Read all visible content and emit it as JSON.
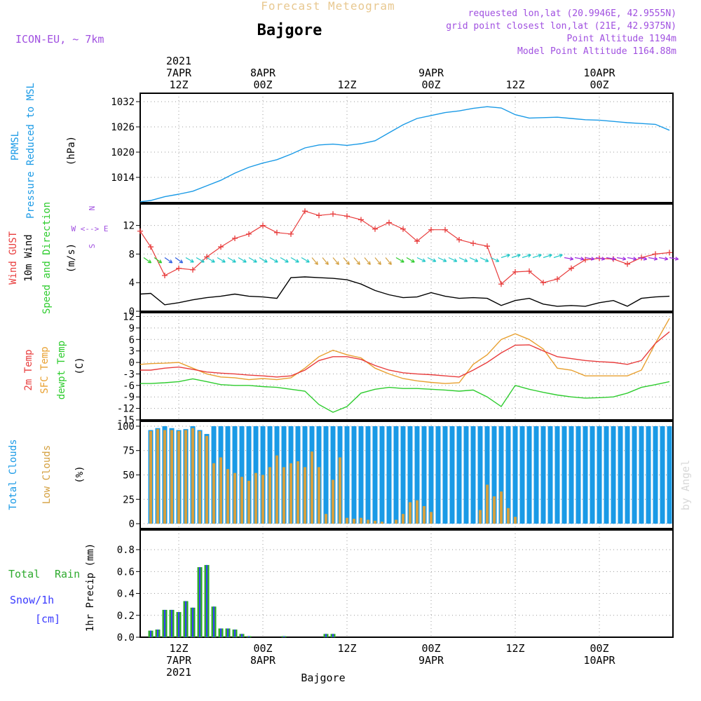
{
  "header": {
    "title": "Forecast Meteogram",
    "station": "Bajgore",
    "model": "ICON-EU, ~ 7km",
    "requested": "requested lon,lat (20.9946E, 42.9555N)",
    "gridpoint": "grid point closest lon,lat (21E, 42.9375N)",
    "point_alt": "Point Altitude 1194m",
    "model_alt": "Model Point Altitude 1164.88m",
    "footer": "Bajgore",
    "watermark": "by Angel"
  },
  "time_axis": {
    "start_label": "2021 7APR 12Z",
    "top_ticks": [
      {
        "t": 0,
        "lines": [
          "2021",
          "7APR",
          "12Z"
        ]
      },
      {
        "t": 12,
        "lines": [
          "8APR",
          "00Z"
        ]
      },
      {
        "t": 24,
        "lines": [
          "12Z"
        ]
      },
      {
        "t": 36,
        "lines": [
          "9APR",
          "00Z"
        ]
      },
      {
        "t": 48,
        "lines": [
          "12Z"
        ]
      },
      {
        "t": 60,
        "lines": [
          "10APR",
          "00Z"
        ]
      }
    ],
    "bottom_ticks": [
      {
        "t": 0,
        "lines": [
          "12Z",
          "7APR",
          "2021"
        ]
      },
      {
        "t": 12,
        "lines": [
          "00Z",
          "8APR"
        ]
      },
      {
        "t": 24,
        "lines": [
          "12Z"
        ]
      },
      {
        "t": 36,
        "lines": [
          "00Z",
          "9APR"
        ]
      },
      {
        "t": 48,
        "lines": [
          "12Z"
        ]
      },
      {
        "t": 60,
        "lines": [
          "00Z",
          "10APR"
        ]
      }
    ]
  },
  "panel_labels": {
    "pressure": [
      "PRMSL",
      "Pressure Reduced to MSL",
      "(hPa)"
    ],
    "wind": [
      "Wind GUST",
      "10m Wind",
      "Speed and Direction",
      "(m/s)"
    ],
    "compass": [
      "N",
      "W <--> E",
      "S"
    ],
    "temp": [
      "2m Temp",
      "SFC Temp",
      "dewpt Temp",
      "(C)"
    ],
    "clouds": [
      "Total Clouds",
      "Low Clouds",
      "(%)"
    ],
    "precip": [
      "Total",
      "Rain",
      "Snow/1h",
      "[cm]",
      "1hr Precip (mm)"
    ]
  },
  "colors": {
    "pressure": "#1a9ae6",
    "gust": "#e83c3c",
    "wind": "#000000",
    "temp2m": "#e83c3c",
    "sfc": "#e8a030",
    "dewpt": "#2ecc2e",
    "total_cloud": "#1a9ae6",
    "low_cloud": "#d4a040",
    "rain": "#2eaa2e",
    "snow": "#3a3aff",
    "title": "#e8c890",
    "info": "#a050e0"
  },
  "chart_data": [
    {
      "type": "line",
      "name": "pressure",
      "title": "PRMSL",
      "ylabel": "(hPa)",
      "ylim": [
        1008,
        1034
      ],
      "yticks": [
        1014,
        1020,
        1026,
        1032
      ],
      "x": [
        -5.5,
        -4,
        -2,
        0,
        2,
        4,
        6,
        8,
        10,
        12,
        14,
        16,
        18,
        20,
        22,
        24,
        26,
        28,
        30,
        32,
        34,
        36,
        38,
        40,
        42,
        44,
        46,
        48,
        50,
        52,
        54,
        56,
        58,
        60,
        62,
        64,
        66,
        68,
        70
      ],
      "values": [
        1008.2,
        1008.5,
        1009.4,
        1010.0,
        1010.7,
        1012.0,
        1013.3,
        1015.0,
        1016.4,
        1017.4,
        1018.2,
        1019.5,
        1021.0,
        1021.7,
        1021.9,
        1021.6,
        1022.0,
        1022.7,
        1024.6,
        1026.5,
        1028.0,
        1028.7,
        1029.4,
        1029.8,
        1030.4,
        1030.8,
        1030.5,
        1028.9,
        1028.1,
        1028.2,
        1028.3,
        1028.0,
        1027.7,
        1027.6,
        1027.3,
        1027.0,
        1026.8,
        1026.6,
        1025.2
      ]
    },
    {
      "type": "line",
      "name": "wind",
      "ylim": [
        0,
        15
      ],
      "yticks": [
        0,
        4,
        8,
        12
      ],
      "x": [
        -5.5,
        -4,
        -2,
        0,
        2,
        4,
        6,
        8,
        10,
        12,
        14,
        16,
        18,
        20,
        22,
        24,
        26,
        28,
        30,
        32,
        34,
        36,
        38,
        40,
        42,
        44,
        46,
        48,
        50,
        52,
        54,
        56,
        58,
        60,
        62,
        64,
        66,
        68,
        70
      ],
      "gust": [
        11.2,
        9.0,
        5.0,
        6.0,
        5.8,
        7.6,
        9.0,
        10.2,
        10.8,
        12.0,
        11.0,
        10.8,
        14.0,
        13.4,
        13.6,
        13.3,
        12.8,
        11.5,
        12.4,
        11.5,
        9.8,
        11.4,
        11.4,
        10.0,
        9.5,
        9.1,
        3.8,
        5.5,
        5.6,
        4.0,
        4.5,
        6.0,
        7.2,
        7.4,
        7.3,
        6.6,
        7.5,
        8.0,
        8.2
      ],
      "speed": [
        2.4,
        2.5,
        0.9,
        1.2,
        1.6,
        1.9,
        2.1,
        2.4,
        2.1,
        2.0,
        1.8,
        4.7,
        4.8,
        4.7,
        4.6,
        4.4,
        3.8,
        2.9,
        2.3,
        1.9,
        2.0,
        2.6,
        2.1,
        1.8,
        1.9,
        1.8,
        0.8,
        1.5,
        1.8,
        1.0,
        0.7,
        0.8,
        0.7,
        1.2,
        1.5,
        0.7,
        1.8,
        2.0,
        2.1
      ]
    },
    {
      "type": "line",
      "name": "temperature",
      "ylim": [
        -15,
        13
      ],
      "yticks": [
        -15,
        -12,
        -9,
        -6,
        -3,
        0,
        3,
        6,
        9,
        12
      ],
      "x": [
        -5.5,
        -4,
        -2,
        0,
        2,
        4,
        6,
        8,
        10,
        12,
        14,
        16,
        18,
        20,
        22,
        24,
        26,
        28,
        30,
        32,
        34,
        36,
        38,
        40,
        42,
        44,
        46,
        48,
        50,
        52,
        54,
        56,
        58,
        60,
        62,
        64,
        66,
        68,
        70
      ],
      "t2m": [
        -2.0,
        -2.0,
        -1.5,
        -1.2,
        -1.8,
        -2.5,
        -2.8,
        -3.0,
        -3.3,
        -3.5,
        -3.8,
        -3.5,
        -2.0,
        0.5,
        1.5,
        1.5,
        0.8,
        -0.8,
        -2.0,
        -2.7,
        -3.0,
        -3.2,
        -3.5,
        -3.8,
        -2.0,
        0.0,
        2.5,
        4.5,
        4.6,
        3.0,
        1.5,
        1.0,
        0.5,
        0.2,
        0.0,
        -0.5,
        0.5,
        5.0,
        8.0
      ],
      "sfc": [
        -0.5,
        -0.3,
        -0.2,
        0.0,
        -1.5,
        -3.0,
        -3.8,
        -4.0,
        -4.5,
        -4.2,
        -4.5,
        -4.0,
        -1.5,
        1.5,
        3.2,
        2.0,
        1.2,
        -1.5,
        -3.0,
        -4.2,
        -4.8,
        -5.2,
        -5.5,
        -5.3,
        -0.5,
        2.0,
        6.0,
        7.5,
        6.0,
        3.5,
        -1.5,
        -2.0,
        -3.5,
        -3.5,
        -3.5,
        -3.5,
        -2.0,
        5.0,
        11.5
      ],
      "dewpt": [
        -5.5,
        -5.5,
        -5.3,
        -5.0,
        -4.3,
        -5.0,
        -5.8,
        -6.0,
        -6.0,
        -6.3,
        -6.5,
        -7.0,
        -7.5,
        -11.0,
        -13.0,
        -11.5,
        -8.0,
        -7.0,
        -6.5,
        -6.8,
        -6.8,
        -7.0,
        -7.2,
        -7.5,
        -7.2,
        -9.0,
        -11.5,
        -6.0,
        -7.0,
        -7.8,
        -8.5,
        -9.0,
        -9.3,
        -9.2,
        -9.0,
        -8.0,
        -6.5,
        -5.8,
        -5.0
      ]
    },
    {
      "type": "bar",
      "name": "clouds",
      "ylim": [
        -5,
        105
      ],
      "yticks": [
        0,
        25,
        50,
        75,
        100
      ],
      "x": [
        -4,
        -3,
        -2,
        -1,
        0,
        1,
        2,
        3,
        4,
        5,
        6,
        7,
        8,
        9,
        10,
        11,
        12,
        13,
        14,
        15,
        16,
        17,
        18,
        19,
        20,
        21,
        22,
        23,
        24,
        25,
        26,
        27,
        28,
        29,
        30,
        31,
        32,
        33,
        34,
        35,
        36,
        37,
        38,
        39,
        40,
        41,
        42,
        43,
        44,
        45,
        46,
        47,
        48,
        49,
        50,
        51,
        52,
        53,
        54,
        55,
        56,
        57,
        58,
        59,
        60,
        61,
        62,
        63,
        64,
        65,
        66,
        67,
        68,
        69,
        70
      ],
      "total": [
        96,
        98,
        100,
        98,
        96,
        97,
        100,
        96,
        92,
        100,
        100,
        100,
        100,
        100,
        100,
        100,
        100,
        100,
        100,
        100,
        100,
        100,
        100,
        100,
        100,
        100,
        100,
        100,
        100,
        100,
        100,
        100,
        100,
        100,
        100,
        100,
        100,
        100,
        100,
        100,
        100,
        100,
        100,
        100,
        100,
        100,
        100,
        100,
        100,
        100,
        100,
        100,
        100,
        100,
        100,
        100,
        100,
        100,
        100,
        100,
        100,
        100,
        100,
        100,
        100,
        100,
        100,
        100,
        100,
        100,
        100,
        100,
        100,
        100,
        100
      ],
      "low": [
        95,
        97,
        96,
        96,
        95,
        96,
        98,
        95,
        90,
        62,
        68,
        56,
        52,
        48,
        44,
        52,
        50,
        58,
        70,
        58,
        62,
        64,
        58,
        74,
        58,
        10,
        45,
        68,
        6,
        5,
        6,
        4,
        3,
        2,
        1,
        4,
        10,
        22,
        24,
        18,
        12,
        1,
        1,
        1,
        1,
        1,
        1,
        14,
        40,
        28,
        33,
        16,
        7,
        1,
        1,
        1,
        1,
        1,
        1,
        1,
        1,
        1,
        1,
        1,
        1,
        1,
        1,
        1,
        1,
        1,
        1,
        1,
        1,
        1,
        1
      ]
    },
    {
      "type": "bar",
      "name": "precip",
      "ylim": [
        0,
        0.98
      ],
      "yticks": [
        0,
        0.2,
        0.4,
        0.6,
        0.8
      ],
      "x": [
        -4,
        -3,
        -2,
        -1,
        0,
        1,
        2,
        3,
        4,
        5,
        6,
        7,
        8,
        9,
        10,
        11,
        12,
        13,
        14,
        15,
        16,
        17,
        18,
        19,
        20,
        21,
        22,
        23,
        24,
        25,
        26,
        27,
        28,
        29,
        30,
        31,
        32,
        33,
        34,
        35,
        36,
        37,
        38,
        39,
        40,
        41,
        42,
        43,
        44,
        45,
        46,
        47,
        48,
        49,
        50,
        51,
        52,
        53,
        54,
        55,
        56,
        57,
        58,
        59,
        60,
        61,
        62,
        63,
        64,
        65,
        66,
        67,
        68,
        69,
        70
      ],
      "total": [
        0.06,
        0.07,
        0.25,
        0.25,
        0.23,
        0.33,
        0.27,
        0.64,
        0.66,
        0.28,
        0.08,
        0.08,
        0.07,
        0.03,
        0.01,
        0.0,
        0.0,
        0.0,
        0.0,
        0.01,
        0.0,
        0.0,
        0.0,
        0.0,
        0.0,
        0.03,
        0.03,
        0.0,
        0.0,
        0.0,
        0.0,
        0.0,
        0.0,
        0.0,
        0.0,
        0.0,
        0.0,
        0.0,
        0.0,
        0.0,
        0.0,
        0.0,
        0.0,
        0.0,
        0.0,
        0.0,
        0.0,
        0.0,
        0.0,
        0.0,
        0.0,
        0.0,
        0.0,
        0.0,
        0.0,
        0.0,
        0.0,
        0.0,
        0.0,
        0.0,
        0.0,
        0.0,
        0.0,
        0.0,
        0.0,
        0.0,
        0.0,
        0.0,
        0.0,
        0.0,
        0.0,
        0.0,
        0.0,
        0.0,
        0.0
      ]
    }
  ]
}
